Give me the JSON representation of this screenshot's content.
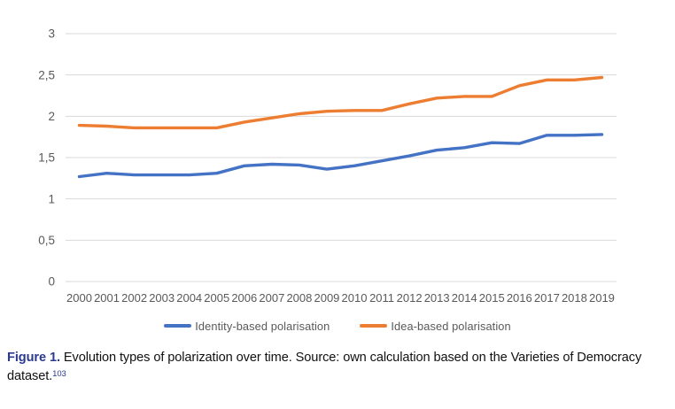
{
  "chart_data": {
    "type": "line",
    "x": [
      2000,
      2001,
      2002,
      2003,
      2004,
      2005,
      2006,
      2007,
      2008,
      2009,
      2010,
      2011,
      2012,
      2013,
      2014,
      2015,
      2016,
      2017,
      2018,
      2019
    ],
    "series": [
      {
        "name": "Identity-based polarisation",
        "color": "#4472C4",
        "values": [
          1.27,
          1.31,
          1.29,
          1.29,
          1.29,
          1.31,
          1.4,
          1.42,
          1.41,
          1.36,
          1.4,
          1.46,
          1.52,
          1.59,
          1.62,
          1.68,
          1.67,
          1.77,
          1.77,
          1.78
        ]
      },
      {
        "name": "Idea-based polarisation",
        "color": "#ED7D31",
        "values": [
          1.89,
          1.88,
          1.86,
          1.86,
          1.86,
          1.86,
          1.93,
          1.98,
          2.03,
          2.06,
          2.07,
          2.07,
          2.15,
          2.22,
          2.24,
          2.24,
          2.37,
          2.44,
          2.44,
          2.47
        ]
      }
    ],
    "ylim": [
      0,
      3
    ],
    "yticks": [
      0,
      0.5,
      1,
      1.5,
      2,
      2.5,
      3
    ],
    "y_tick_labels": [
      "0",
      "0,5",
      "1",
      "1,5",
      "2",
      "2,5",
      "3"
    ],
    "grid": true,
    "legend_position": "bottom",
    "title": "",
    "xlabel": "",
    "ylabel": ""
  },
  "colors": {
    "gridline": "#D9D9D9",
    "axis_text": "#595959",
    "identity_line": "#4472C4",
    "idea_line": "#ED7D31",
    "caption_accent": "#2B3A8F"
  },
  "caption": {
    "label": "Figure 1.",
    "line1": "Evolution types of polarization over time. Source: own calculation based on the Varieties of Democracy",
    "line2": "dataset.",
    "footnote": "103"
  }
}
